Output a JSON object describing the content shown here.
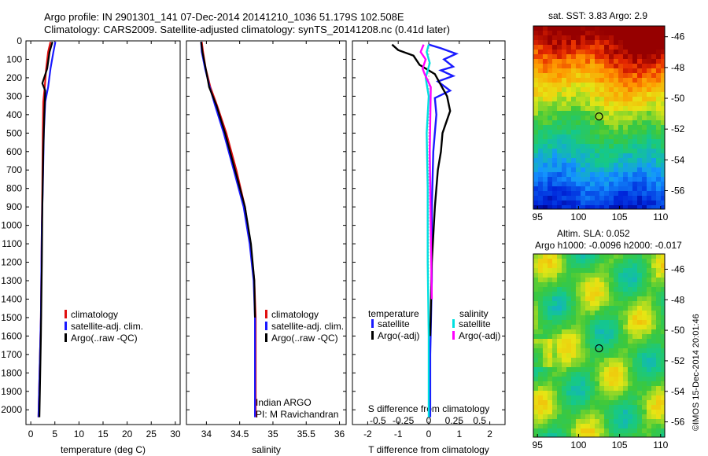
{
  "header": {
    "line1": "Argo profile: IN 2901301_141 07-Dec-2014 20141210_1036 51.179S 102.508E",
    "line2": "Climatology: CARS2009. Satellite-adjusted climatology: synTS_20141208.nc (0.41d later)"
  },
  "colors": {
    "climatology": "#e01010",
    "satellite": "#1a1aff",
    "argo": "#000000",
    "sat_salinity": "#00e0e0",
    "argo_adj_salinity": "#ff00ff"
  },
  "chart_data": [
    {
      "type": "line",
      "name": "temperature-profile",
      "xlabel": "temperature (deg C)",
      "ylabel": "",
      "xlim": [
        -1,
        31
      ],
      "ylim": [
        2080,
        0
      ],
      "xticks": [
        "0",
        "5",
        "10",
        "15",
        "20",
        "25",
        "30"
      ],
      "xtick_values": [
        0,
        5,
        10,
        15,
        20,
        25,
        30
      ],
      "yticks": [
        "0",
        "100",
        "200",
        "300",
        "400",
        "500",
        "600",
        "700",
        "800",
        "900",
        "1000",
        "1100",
        "1200",
        "1300",
        "1400",
        "1500",
        "1600",
        "1700",
        "1800",
        "1900",
        "2000"
      ],
      "ytick_values": [
        0,
        100,
        200,
        300,
        400,
        500,
        600,
        700,
        800,
        900,
        1000,
        1100,
        1200,
        1300,
        1400,
        1500,
        1600,
        1700,
        1800,
        1900,
        2000
      ],
      "legend": [
        "climatology",
        "satellite-adj. clim.",
        "Argo(..raw -QC)"
      ],
      "series": [
        {
          "name": "climatology",
          "color_key": "climatology",
          "x": [
            4.1,
            3.6,
            3.2,
            2.9,
            2.6,
            2.5,
            2.4,
            2.3,
            2.1,
            1.6
          ],
          "y": [
            5,
            60,
            150,
            250,
            330,
            500,
            800,
            1000,
            1500,
            2040
          ]
        },
        {
          "name": "satellite-adj. clim.",
          "color_key": "satellite",
          "x": [
            5.1,
            4.7,
            4.1,
            3.6,
            3.0,
            2.7,
            2.5,
            2.3,
            2.1,
            1.6
          ],
          "y": [
            5,
            60,
            150,
            250,
            330,
            500,
            800,
            1000,
            1500,
            2040
          ]
        },
        {
          "name": "Argo(..raw -QC)",
          "color_key": "argo",
          "x": [
            4.5,
            3.9,
            3.4,
            2.4,
            3.0,
            2.8,
            2.6,
            2.4,
            2.3,
            2.1,
            1.8
          ],
          "y": [
            5,
            60,
            150,
            230,
            270,
            400,
            600,
            900,
            1200,
            1600,
            2040
          ]
        }
      ]
    },
    {
      "type": "line",
      "name": "salinity-profile",
      "xlabel": "salinity",
      "xlim": [
        33.7,
        36.1
      ],
      "ylim": [
        2080,
        0
      ],
      "xticks": [
        "34",
        "34.5",
        "35",
        "35.5",
        "36"
      ],
      "xtick_values": [
        34,
        34.5,
        35,
        35.5,
        36
      ],
      "legend": [
        "climatology",
        "satellite-adj. clim.",
        "Argo(..raw -QC)"
      ],
      "annotation": [
        "Indian ARGO",
        "PI: M Ravichandran"
      ],
      "series": [
        {
          "name": "climatology",
          "color_key": "climatology",
          "x": [
            33.93,
            33.95,
            33.99,
            34.06,
            34.16,
            34.3,
            34.45,
            34.58,
            34.66,
            34.72,
            34.74,
            34.74
          ],
          "y": [
            5,
            60,
            150,
            250,
            350,
            500,
            700,
            900,
            1100,
            1300,
            1500,
            2040
          ]
        },
        {
          "name": "satellite-adj. clim.",
          "color_key": "satellite",
          "x": [
            33.92,
            33.93,
            33.98,
            34.05,
            34.13,
            34.26,
            34.41,
            34.56,
            34.65,
            34.71,
            34.73,
            34.73
          ],
          "y": [
            5,
            60,
            150,
            250,
            350,
            500,
            700,
            900,
            1100,
            1300,
            1500,
            2040
          ]
        },
        {
          "name": "Argo(..raw -QC)",
          "color_key": "argo",
          "x": [
            33.92,
            33.94,
            33.99,
            34.04,
            34.15,
            34.28,
            34.43,
            34.58,
            34.67,
            34.72,
            34.73
          ],
          "y": [
            5,
            60,
            150,
            250,
            350,
            500,
            700,
            900,
            1100,
            1300,
            1500
          ]
        }
      ]
    },
    {
      "type": "line",
      "name": "difference-profile",
      "xlabel": "T difference from climatology",
      "top_label": "S difference from climatology",
      "xlim": [
        -2.5,
        2.5
      ],
      "ylim": [
        2080,
        0
      ],
      "xticks": [
        "-2",
        "-1",
        "0",
        "1",
        "2"
      ],
      "xtick_values": [
        -2,
        -1,
        0,
        1,
        2
      ],
      "sticks": [
        "-0.5",
        "-0.25",
        "0",
        "0.25",
        "0.5"
      ],
      "stick_values": [
        -0.5,
        -0.25,
        0,
        0.25,
        0.5
      ],
      "s_xlim": [
        -0.75,
        0.75
      ],
      "legend_temperature_title": "temperature",
      "legend_salinity_title": "salinity",
      "legend_temperature": [
        "satellite",
        "Argo(-adj)"
      ],
      "legend_salinity": [
        "satellite",
        "Argo(-adj)"
      ],
      "series": [
        {
          "name": "T satellite",
          "axis": "T",
          "color_key": "satellite",
          "x": [
            0.0,
            0.4,
            0.9,
            0.5,
            0.8,
            0.4,
            0.8,
            0.3,
            0.7,
            0.2,
            0.25,
            0.15,
            0.1,
            0.1,
            0.05,
            0.05
          ],
          "y": [
            20,
            40,
            70,
            100,
            140,
            160,
            190,
            220,
            270,
            310,
            400,
            600,
            900,
            1300,
            1700,
            2040
          ]
        },
        {
          "name": "T Argo(-adj)",
          "axis": "T",
          "color_key": "argo",
          "x": [
            -1.2,
            -1.0,
            -0.5,
            -0.3,
            0.2,
            0.4,
            0.6,
            0.7,
            0.45,
            0.4,
            0.3,
            0.2,
            0.1,
            0.05
          ],
          "y": [
            20,
            50,
            80,
            130,
            180,
            240,
            300,
            380,
            500,
            600,
            700,
            900,
            1200,
            1600
          ]
        },
        {
          "name": "S satellite",
          "axis": "S",
          "color_key": "sat_salinity",
          "x": [
            0.0,
            -0.02,
            0.01,
            -0.03,
            0.0,
            -0.02,
            -0.01,
            -0.01,
            0.0,
            0.0
          ],
          "y": [
            20,
            60,
            120,
            200,
            300,
            500,
            800,
            1200,
            1600,
            2040
          ]
        },
        {
          "name": "S Argo(-adj)",
          "axis": "S",
          "color_key": "argo_adj_salinity",
          "x": [
            -0.05,
            -0.08,
            -0.03,
            -0.06,
            -0.04,
            0.02,
            0.01,
            0.02,
            0.03
          ],
          "y": [
            20,
            60,
            100,
            150,
            180,
            250,
            600,
            1000,
            1400
          ]
        }
      ]
    },
    {
      "type": "heatmap",
      "name": "sst-map",
      "title": "sat. SST: 3.83 Argo: 2.9",
      "xticks": [
        "95",
        "100",
        "105",
        "110"
      ],
      "xtick_values": [
        95,
        100,
        105,
        110
      ],
      "yticks": [
        "-46",
        "-48",
        "-50",
        "-52",
        "-54",
        "-56"
      ],
      "ytick_values": [
        -46,
        -48,
        -50,
        -52,
        -54,
        -56
      ],
      "xlim": [
        94.5,
        110.5
      ],
      "ylim": [
        -57.2,
        -45.3
      ],
      "marker": [
        102.5,
        -51.18
      ]
    },
    {
      "type": "heatmap",
      "name": "sla-map",
      "title_line1": "Altim. SLA: 0.052",
      "title_line2": "Argo h1000: -0.0096 h2000: -0.017",
      "xticks": [
        "95",
        "100",
        "105",
        "110"
      ],
      "xtick_values": [
        95,
        100,
        105,
        110
      ],
      "yticks": [
        "-46",
        "-48",
        "-50",
        "-52",
        "-54",
        "-56"
      ],
      "ytick_values": [
        -46,
        -48,
        -50,
        -52,
        -54,
        -56
      ],
      "xlim": [
        94.5,
        110.5
      ],
      "ylim": [
        -57.0,
        -45.0
      ],
      "marker": [
        102.5,
        -51.18
      ]
    }
  ],
  "footer": {
    "credit": "©IMOS 15-Dec-2014 20:01:46"
  }
}
